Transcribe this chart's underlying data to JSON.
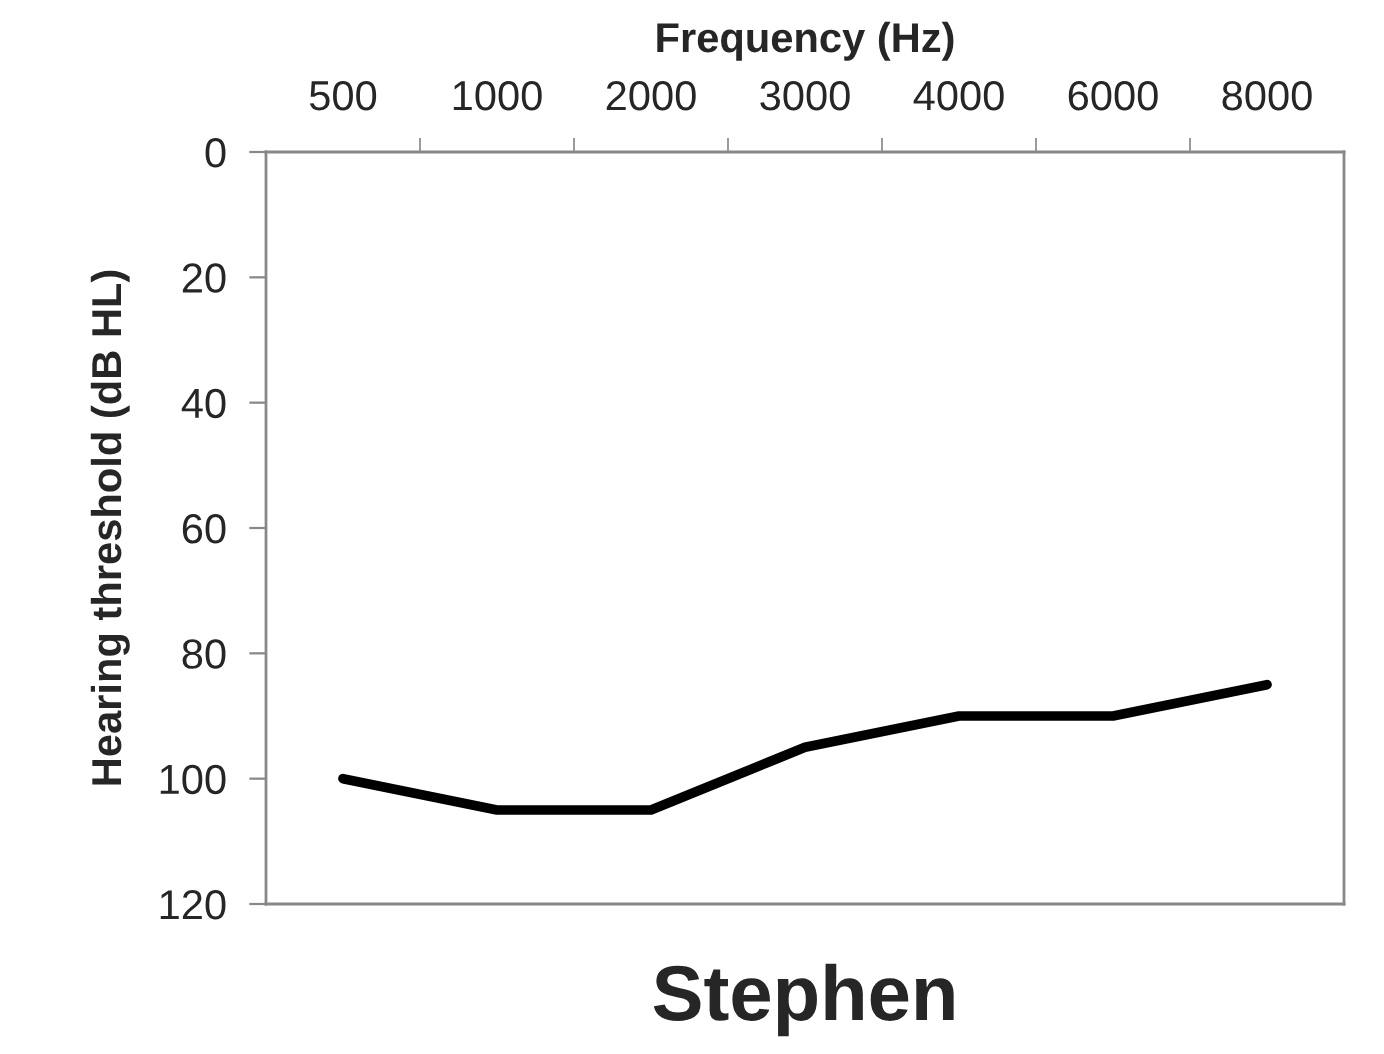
{
  "chart_data": {
    "type": "line",
    "title": "Stephen",
    "xlabel": "Frequency (Hz)",
    "ylabel": "Hearing threshold (dB HL)",
    "categories": [
      "500",
      "1000",
      "2000",
      "3000",
      "4000",
      "6000",
      "8000"
    ],
    "series": [
      {
        "color": "#000000",
        "values": [
          100,
          105,
          105,
          95,
          90,
          90,
          85
        ]
      }
    ],
    "ylim": [
      120,
      0
    ],
    "yticks": [
      0,
      20,
      40,
      60,
      80,
      100,
      120
    ],
    "grid": false,
    "legend": false,
    "marker": "none",
    "line_style": "solid"
  }
}
